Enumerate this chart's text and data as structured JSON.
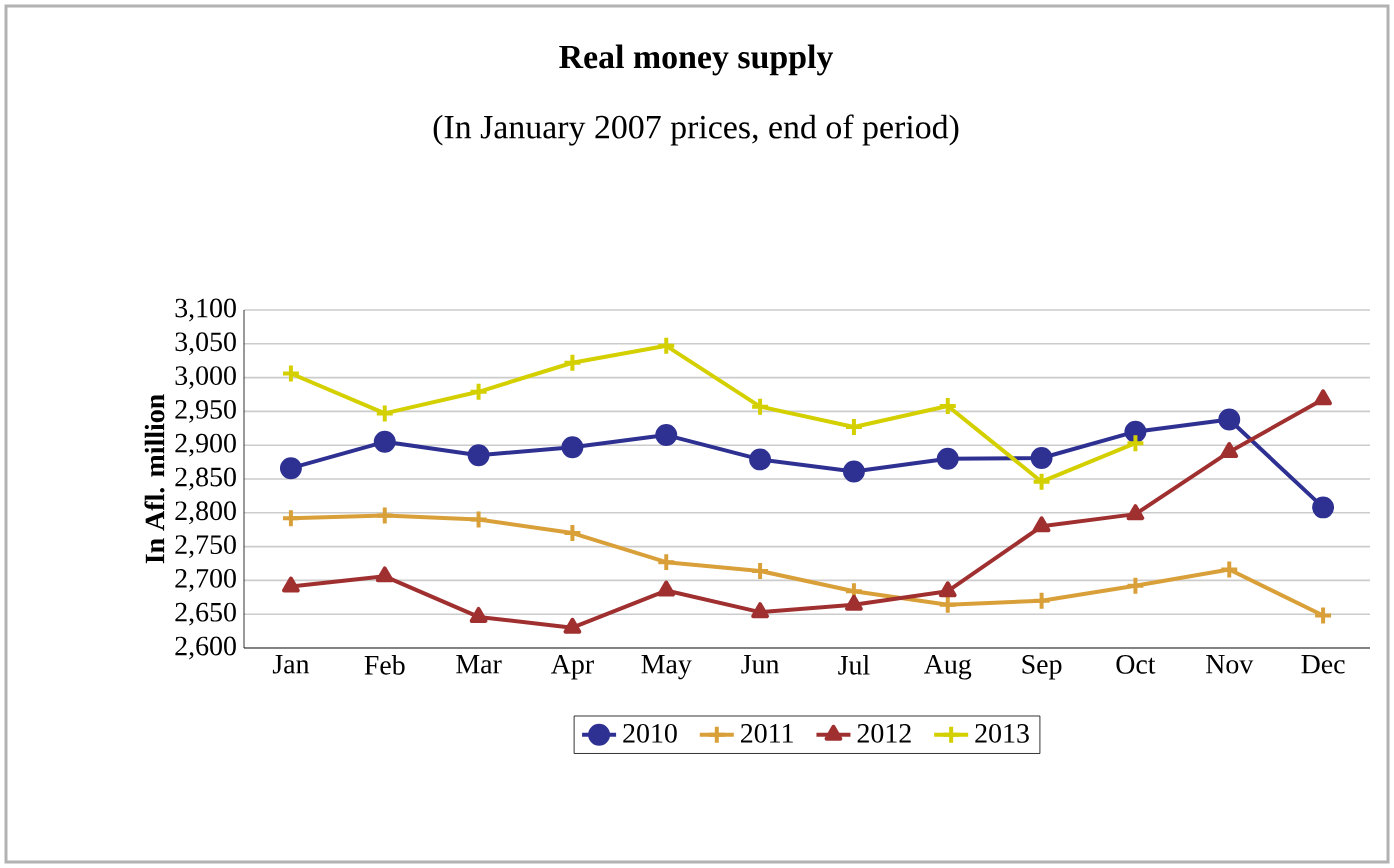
{
  "chart_data": {
    "type": "line",
    "title": "Real money supply",
    "subtitle": "(In January 2007 prices, end of period)",
    "ylabel": "In Afl. million",
    "categories": [
      "Jan",
      "Feb",
      "Mar",
      "Apr",
      "May",
      "Jun",
      "Jul",
      "Aug",
      "Sep",
      "Oct",
      "Nov",
      "Dec"
    ],
    "series": [
      {
        "name": "2010",
        "color": "#2e3192",
        "marker": "circle",
        "values": [
          2866,
          2905,
          2885,
          2897,
          2915,
          2879,
          2861,
          2880,
          2881,
          2920,
          2938,
          2808
        ]
      },
      {
        "name": "2011",
        "color": "#d9a03a",
        "marker": "cross",
        "values": [
          2792,
          2796,
          2790,
          2770,
          2727,
          2714,
          2684,
          2664,
          2670,
          2692,
          2716,
          2648
        ]
      },
      {
        "name": "2012",
        "color": "#a03030",
        "marker": "triangle",
        "values": [
          2691,
          2706,
          2646,
          2630,
          2685,
          2653,
          2664,
          2684,
          2780,
          2798,
          2890,
          2968
        ]
      },
      {
        "name": "2013",
        "color": "#d4d000",
        "marker": "cross",
        "values": [
          3006,
          2947,
          2979,
          3022,
          3047,
          2957,
          2927,
          2958,
          2846,
          2903,
          null,
          null
        ]
      }
    ],
    "ylim": [
      2600,
      3100
    ],
    "yticks": [
      {
        "value": 2600,
        "label": "2,600"
      },
      {
        "value": 2650,
        "label": "2,650"
      },
      {
        "value": 2700,
        "label": "2,700"
      },
      {
        "value": 2750,
        "label": "2,750"
      },
      {
        "value": 2800,
        "label": "2,800"
      },
      {
        "value": 2850,
        "label": "2,850"
      },
      {
        "value": 2900,
        "label": "2,900"
      },
      {
        "value": 2950,
        "label": "2,950"
      },
      {
        "value": 3000,
        "label": "3,000"
      },
      {
        "value": 3050,
        "label": "3,050"
      },
      {
        "value": 3100,
        "label": "3,100"
      }
    ],
    "grid": "y",
    "legend": "bottom",
    "line_style": "solid"
  }
}
